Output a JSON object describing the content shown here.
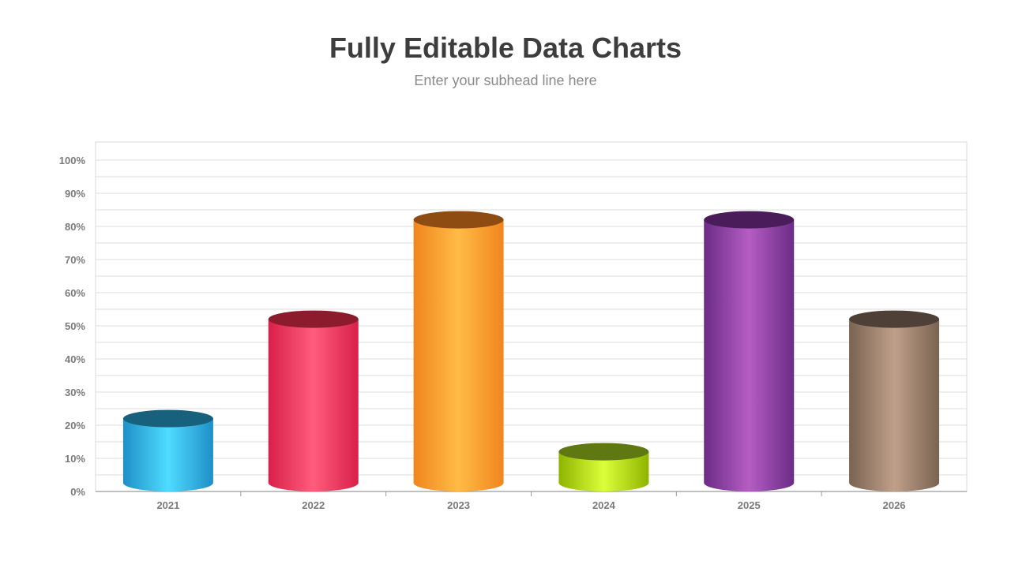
{
  "header": {
    "title": "Fully Editable Data Charts",
    "subtitle": "Enter your subhead line here"
  },
  "chart_data": {
    "type": "bar",
    "style": "3d-cylinder",
    "title": "",
    "xlabel": "",
    "ylabel": "",
    "categories": [
      "2021",
      "2022",
      "2023",
      "2024",
      "2025",
      "2026"
    ],
    "values": [
      22,
      52,
      82,
      12,
      82,
      52
    ],
    "ylim": [
      0,
      100
    ],
    "ytick_step": 10,
    "y_tick_format": "percent",
    "grid": true,
    "legend": "none",
    "colors": [
      {
        "side": "#1f8fc8",
        "mid": "#4fdcff",
        "top": "#17617c"
      },
      {
        "side": "#d8204a",
        "mid": "#ff5c7c",
        "top": "#8c1b2e"
      },
      {
        "side": "#f0861e",
        "mid": "#ffbb45",
        "top": "#8e4b12"
      },
      {
        "side": "#8fb400",
        "mid": "#dcff3a",
        "top": "#5f7812"
      },
      {
        "side": "#6a2c86",
        "mid": "#b55dc4",
        "top": "#4a1c5a"
      },
      {
        "side": "#7a6352",
        "mid": "#bfa08a",
        "top": "#4e4036"
      }
    ]
  }
}
